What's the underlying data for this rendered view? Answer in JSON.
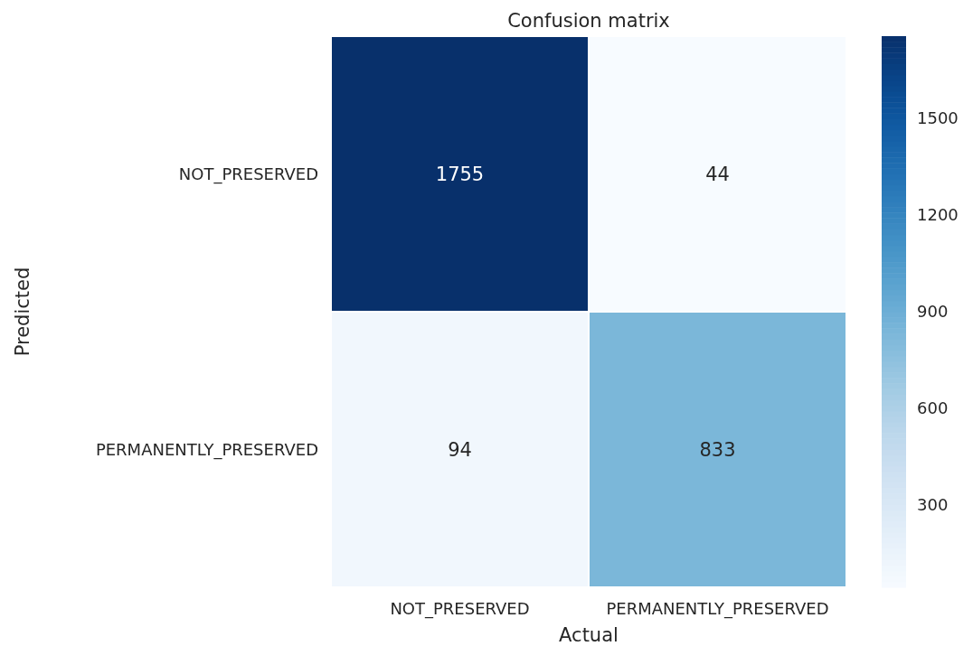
{
  "chart_data": {
    "type": "heatmap",
    "title": "Confusion matrix",
    "xlabel": "Actual",
    "ylabel": "Predicted",
    "categories": [
      "NOT_PRESERVED",
      "PERMANENTLY_PRESERVED"
    ],
    "y_categories": [
      "NOT_PRESERVED",
      "PERMANENTLY_PRESERVED"
    ],
    "cells": [
      [
        1755,
        44
      ],
      [
        94,
        833
      ]
    ],
    "clim": [
      44,
      1755
    ],
    "cticks": [
      300,
      600,
      900,
      1200,
      1500
    ],
    "data_labels": true
  }
}
